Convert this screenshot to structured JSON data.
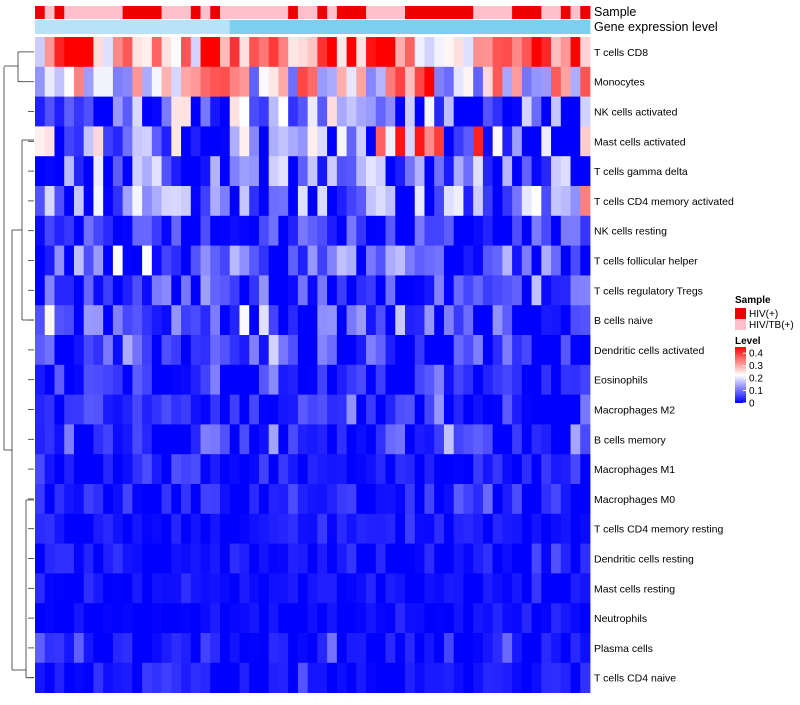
{
  "chart_data": {
    "type": "heatmap",
    "title": "",
    "annotation_tracks": [
      "Sample",
      "Gene expression level"
    ],
    "sample_groups": [
      "HIV(+)",
      "HIV/TB(+)"
    ],
    "column_sample_groups": [
      0,
      1,
      0,
      1,
      1,
      1,
      1,
      1,
      1,
      0,
      0,
      0,
      0,
      1,
      1,
      1,
      0,
      1,
      0,
      1,
      1,
      1,
      1,
      1,
      1,
      1,
      0,
      1,
      1,
      0,
      1,
      0,
      0,
      0,
      1,
      1,
      1,
      1,
      0,
      0,
      0,
      0,
      0,
      0,
      0,
      1,
      1,
      1,
      1,
      0,
      0,
      0,
      1,
      1,
      0,
      1,
      0
    ],
    "rows": [
      "T cells CD8",
      "Monocytes",
      "NK cells activated",
      "Mast cells activated",
      "T cells gamma delta",
      "T cells CD4 memory activated",
      "NK cells resting",
      "T cells follicular helper",
      "T cells regulatory  Tregs",
      "B cells naive",
      "Dendritic cells activated",
      "Eosinophils",
      "Macrophages M2",
      "B cells memory",
      "Macrophages M1",
      "Macrophages M0",
      "T cells CD4 memory resting",
      "Dendritic cells resting",
      "Mast cells resting",
      "Neutrophils",
      "Plasma cells",
      "T cells CD4 naive"
    ],
    "row_base_levels": [
      0.34,
      0.24,
      0.085,
      0.09,
      0.07,
      0.075,
      0.035,
      0.055,
      0.045,
      0.045,
      0.04,
      0.025,
      0.025,
      0.035,
      0.02,
      0.02,
      0.012,
      0.012,
      0.006,
      0.004,
      0.018,
      0.012
    ],
    "n_columns": 57,
    "value_range": [
      0,
      0.45
    ],
    "legend": {
      "sample_title": "Sample",
      "level_title": "Level",
      "level_ticks": [
        "0.4",
        "0.3",
        "0.2",
        "0.1",
        "0"
      ],
      "level_tick_values": [
        0.4,
        0.3,
        0.2,
        0.1,
        0
      ]
    }
  },
  "colors": {
    "hiv": "#ee0000",
    "hiv_tb": "#ffc0cb",
    "gene_expression": "#7ecef0",
    "gene_expression_light": "#b8e2f6",
    "low": "#0000ff",
    "mid": "#ffffff",
    "high": "#ff0000"
  }
}
